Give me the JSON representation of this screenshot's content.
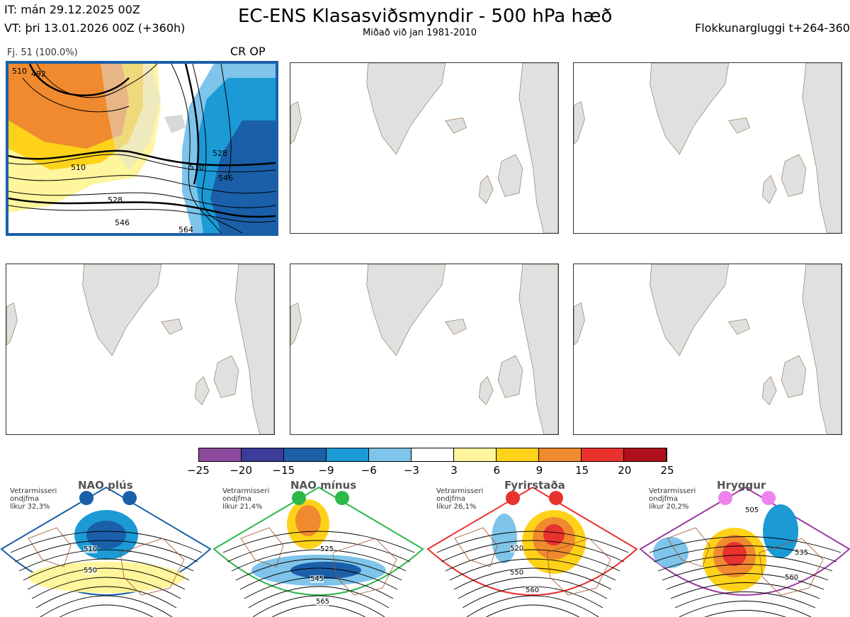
{
  "header": {
    "it_line": "IT: mán 29.12.2025 00Z",
    "vt_line": "VT: þri 13.01.2026 00Z  (+360h)",
    "title": "EC-ENS Klasasviðsmyndir - 500 hPa hæð",
    "subtitle": "Miðað við jan 1981-2010",
    "window": "Flokkunargluggi t+264-360"
  },
  "main_panel": {
    "label": "Fj. 51 (100.0%)",
    "badge": "CR OP",
    "contour_labels": [
      "510",
      "492",
      "510",
      "528",
      "546",
      "510",
      "528",
      "546",
      "564"
    ]
  },
  "colorbar": {
    "ticks": [
      "−25",
      "−20",
      "−15",
      "−9",
      "−6",
      "−3",
      "3",
      "6",
      "9",
      "15",
      "20",
      "25"
    ],
    "colors": [
      "#8c4a9c",
      "#3b3b9a",
      "#1a5fa8",
      "#1b9ad6",
      "#7fc4ea",
      "#ffffff",
      "#fff59d",
      "#ffd21a",
      "#f08a2e",
      "#e8322e",
      "#b0101a"
    ]
  },
  "regimes": [
    {
      "name": "NAO plús",
      "note": "Vetrarmisseri\nondjfma\nlíkur 32,3%",
      "color": "#1a5fa8",
      "labels": [
        "510",
        "550"
      ]
    },
    {
      "name": "NAO mínus",
      "note": "Vetrarmisseri\nondjfma\nlíkur 21,4%",
      "color": "#2db84c",
      "labels": [
        "525",
        "545",
        "565"
      ]
    },
    {
      "name": "Fyrirstaða",
      "note": "Vetrarmisseri\nondjfma\nlíkur 26,1%",
      "color": "#e8322e",
      "labels": [
        "520",
        "550",
        "560"
      ]
    },
    {
      "name": "Hryggur",
      "note": "Vetrarmisseri\nondjfma\nlíkur 20,2%",
      "color": "#9b3aa0",
      "labels": [
        "505",
        "535",
        "560"
      ]
    }
  ]
}
